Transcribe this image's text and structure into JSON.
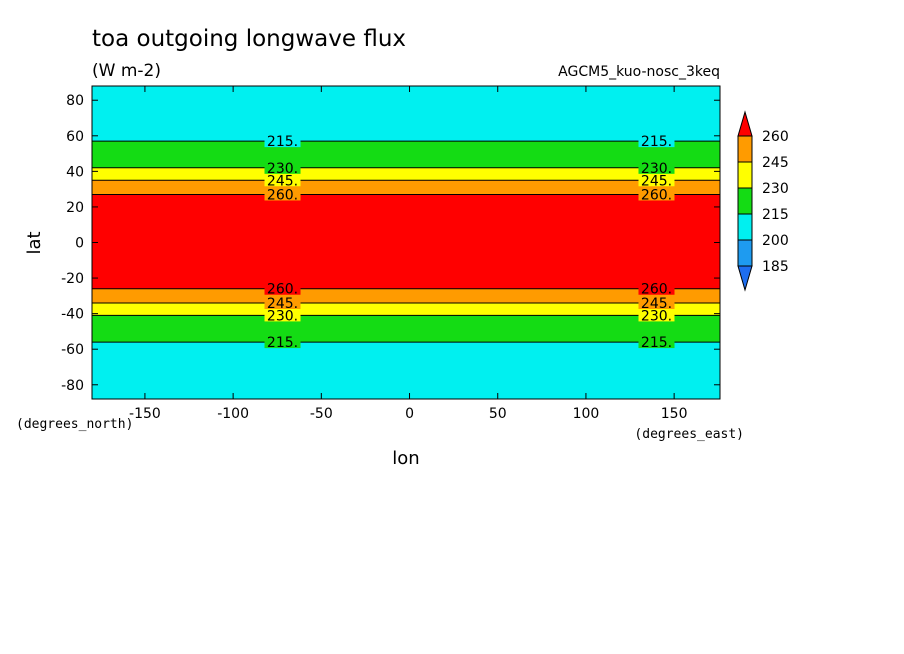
{
  "chart_data": {
    "type": "heatmap",
    "title": "toa outgoing longwave flux",
    "units": "(W m-2)",
    "dataset": "AGCM5_kuo-nosc_3keq",
    "xlabel": "lon",
    "ylabel": "lat",
    "x_units": "(degrees_east)",
    "y_units": "(degrees_north)",
    "xlim": [
      -180,
      176
    ],
    "ylim": [
      -88,
      88
    ],
    "x_ticks": [
      -150,
      -100,
      -50,
      0,
      50,
      100,
      150
    ],
    "y_ticks": [
      -80,
      -60,
      -40,
      -20,
      0,
      20,
      40,
      60,
      80
    ],
    "x_tick_labels": [
      "-150",
      "-100",
      "-50",
      "0",
      "50",
      "100",
      "150"
    ],
    "y_tick_labels": [
      "-80",
      "-60",
      "-40",
      "-20",
      "0",
      "20",
      "40",
      "60",
      "80"
    ],
    "levels": [
      185,
      200,
      215,
      230,
      245,
      260
    ],
    "colorbar_labels": [
      "260",
      "245",
      "230",
      "215",
      "200",
      "185"
    ],
    "colors": {
      "below_185": "#1e6ef0",
      "185_200": "#1e9bf0",
      "200_215": "#00f0f0",
      "215_230": "#14dc14",
      "230_245": "#ffff00",
      "245_260": "#ff9b00",
      "above_260": "#ff0000"
    },
    "bands": [
      {
        "lat_min": 57,
        "lat_max": 88,
        "range": "200-215"
      },
      {
        "lat_min": 42,
        "lat_max": 57,
        "range": "215-230"
      },
      {
        "lat_min": 35,
        "lat_max": 42,
        "range": "230-245"
      },
      {
        "lat_min": 27,
        "lat_max": 35,
        "range": "245-260"
      },
      {
        "lat_min": -26,
        "lat_max": 27,
        "range": ">260"
      },
      {
        "lat_min": -34,
        "lat_max": -26,
        "range": "245-260"
      },
      {
        "lat_min": -41,
        "lat_max": -34,
        "range": "230-245"
      },
      {
        "lat_min": -56,
        "lat_max": -41,
        "range": "215-230"
      },
      {
        "lat_min": -88,
        "lat_max": -56,
        "range": "200-215"
      }
    ],
    "contours": [
      {
        "level": 215,
        "label": "215.",
        "lat": 57
      },
      {
        "level": 230,
        "label": "230.",
        "lat": 42
      },
      {
        "level": 245,
        "label": "245.",
        "lat": 35
      },
      {
        "level": 260,
        "label": "260.",
        "lat": 27
      },
      {
        "level": 260,
        "label": "260.",
        "lat": -26
      },
      {
        "level": 245,
        "label": "245.",
        "lat": -34
      },
      {
        "level": 230,
        "label": "230.",
        "lat": -41
      },
      {
        "level": 215,
        "label": "215.",
        "lat": -56
      }
    ],
    "contour_label_lons": [
      -72,
      140
    ]
  }
}
